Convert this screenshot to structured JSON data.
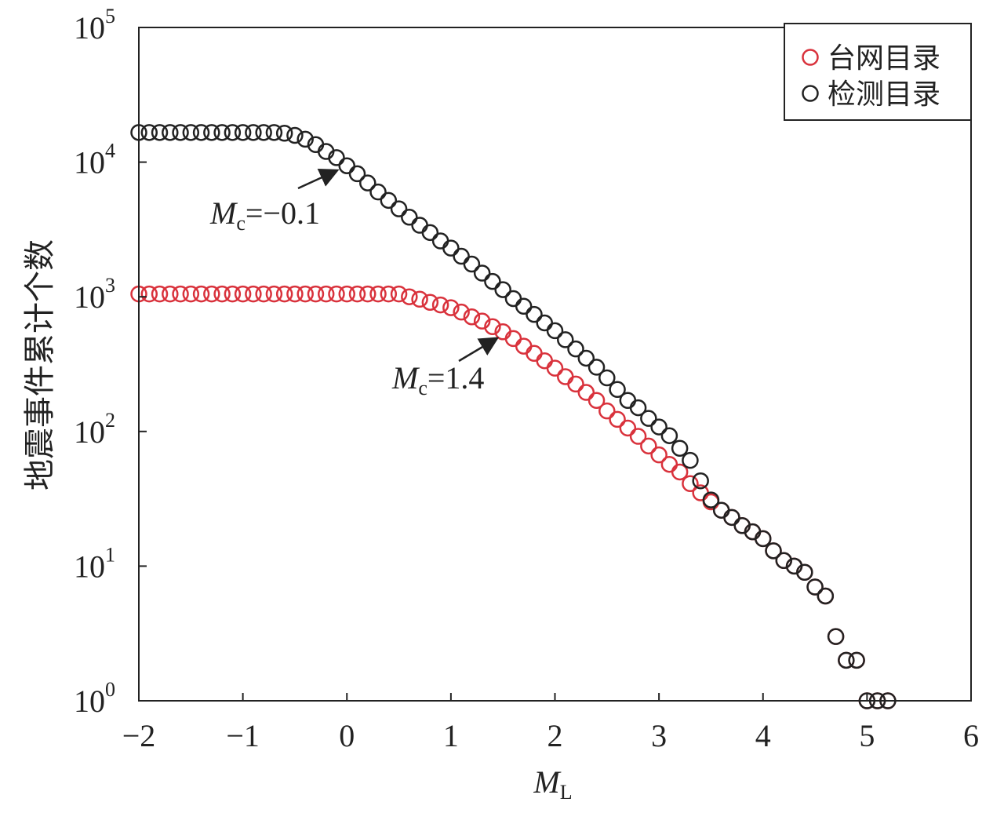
{
  "chart_data": {
    "type": "scatter",
    "xlabel": {
      "text": "M",
      "sub": "L"
    },
    "ylabel": "地震事件累计个数",
    "log_y": true,
    "xlim": [
      -2,
      6
    ],
    "ylim": [
      1,
      100000
    ],
    "xticks": [
      {
        "value": -2,
        "label": "−2"
      },
      {
        "value": -1,
        "label": "−1"
      },
      0,
      1,
      2,
      3,
      4,
      5,
      6
    ],
    "yticks": [
      {
        "value": 1,
        "label": "10",
        "sup": "0"
      },
      {
        "value": 10,
        "label": "10",
        "sup": "1"
      },
      {
        "value": 100,
        "label": "10",
        "sup": "2"
      },
      {
        "value": 1000,
        "label": "10",
        "sup": "3"
      },
      {
        "value": 10000,
        "label": "10",
        "sup": "4"
      },
      {
        "value": 100000,
        "label": "10",
        "sup": "5"
      }
    ],
    "legend": "upper right",
    "x": [
      -2,
      -1.9,
      -1.8,
      -1.7,
      -1.6,
      -1.5,
      -1.4,
      -1.3,
      -1.2,
      -1.1,
      -1,
      -0.9,
      -0.8,
      -0.7,
      -0.6,
      -0.5,
      -0.4,
      -0.3,
      -0.2,
      -0.1,
      0,
      0.1,
      0.2,
      0.3,
      0.4,
      0.5,
      0.6,
      0.7,
      0.8,
      0.9,
      1,
      1.1,
      1.2,
      1.3,
      1.4,
      1.5,
      1.6,
      1.7,
      1.8,
      1.9,
      2,
      2.1,
      2.2,
      2.3,
      2.4,
      2.5,
      2.6,
      2.7,
      2.8,
      2.9,
      3,
      3.1,
      3.2,
      3.3,
      3.4,
      3.5,
      3.6,
      3.7,
      3.8,
      3.9,
      4,
      4.1,
      4.2,
      4.3,
      4.4,
      4.5,
      4.6,
      4.7,
      4.8,
      4.9,
      5,
      5.1,
      5.2
    ],
    "series": [
      {
        "name": "台网目录",
        "color": "#d9323c",
        "values": [
          1050,
          1050,
          1050,
          1050,
          1050,
          1050,
          1050,
          1050,
          1050,
          1050,
          1050,
          1050,
          1050,
          1050,
          1050,
          1050,
          1050,
          1050,
          1050,
          1050,
          1050,
          1050,
          1050,
          1050,
          1050,
          1050,
          1000,
          960,
          910,
          870,
          830,
          770,
          710,
          660,
          600,
          550,
          490,
          430,
          380,
          335,
          295,
          255,
          225,
          195,
          170,
          142,
          123,
          106,
          92,
          78,
          67,
          57,
          50,
          41,
          35,
          30,
          26,
          23,
          20,
          18,
          16,
          13,
          11,
          10,
          9,
          7,
          6,
          3,
          2,
          2,
          1,
          1,
          1
        ]
      },
      {
        "name": "检测目录",
        "color": "#222222",
        "values": [
          16600,
          16600,
          16600,
          16600,
          16600,
          16600,
          16600,
          16600,
          16600,
          16600,
          16600,
          16600,
          16600,
          16600,
          16400,
          15800,
          14800,
          13500,
          12000,
          10800,
          9400,
          8200,
          7000,
          6000,
          5200,
          4500,
          3900,
          3400,
          3000,
          2600,
          2300,
          2000,
          1750,
          1500,
          1300,
          1130,
          970,
          850,
          740,
          640,
          560,
          480,
          410,
          350,
          300,
          250,
          205,
          170,
          150,
          125,
          108,
          93,
          75,
          61,
          43,
          31,
          26,
          23,
          20,
          18,
          16,
          13,
          11,
          10,
          9,
          7,
          6,
          3,
          2,
          2,
          1,
          1,
          1
        ]
      }
    ],
    "annotations": [
      {
        "text": "M",
        "sub": "c",
        "rest": "=−0.1"
      },
      {
        "text": "M",
        "sub": "c",
        "rest": "=1.4"
      }
    ]
  }
}
